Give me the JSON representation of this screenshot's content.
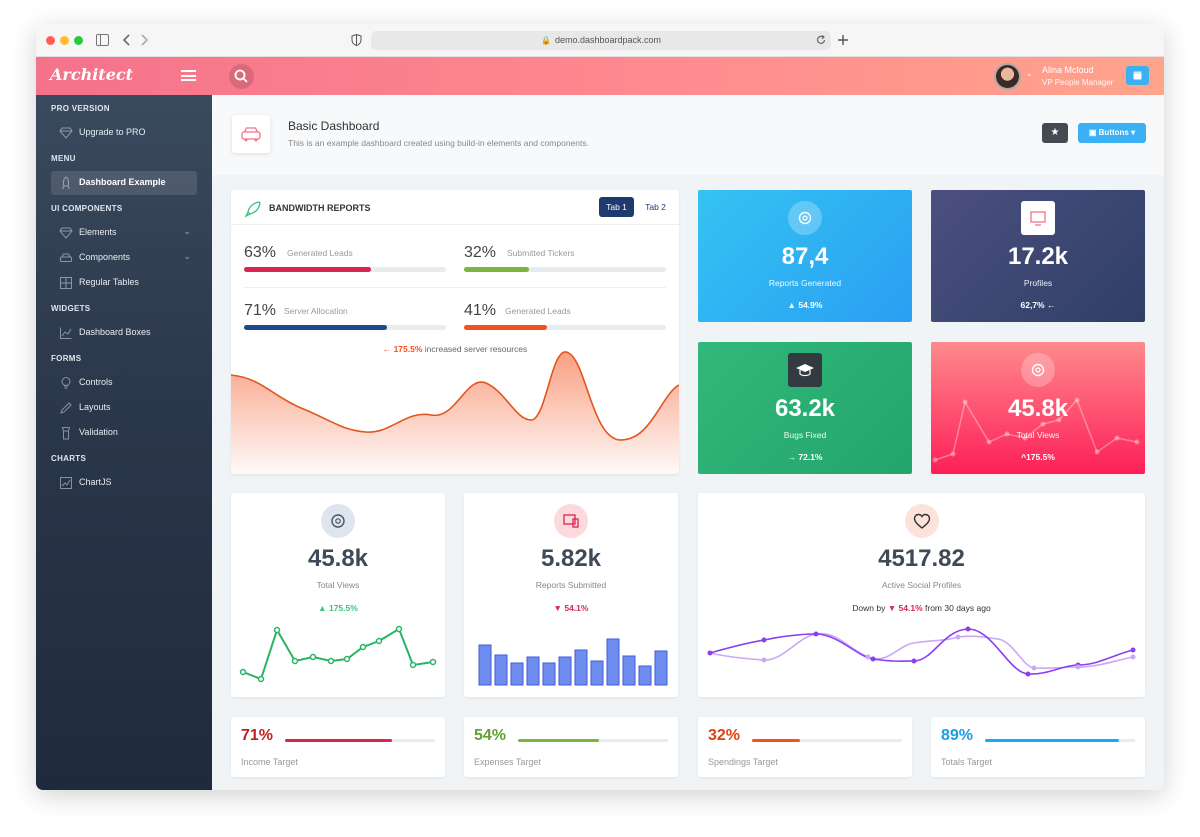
{
  "browser": {
    "url": "demo.dashboardpack.com"
  },
  "topbar": {
    "logo": "Architect",
    "user_name": "Alina Mcloud",
    "user_role": "VP People Manager"
  },
  "sidebar": {
    "sections": [
      "PRO VERSION",
      "MENU",
      "UI COMPONENTS",
      "WIDGETS",
      "FORMS",
      "CHARTS"
    ],
    "items": [
      {
        "label": "Upgrade to PRO",
        "icon": "diamond-icon"
      },
      {
        "label": "Dashboard Example",
        "icon": "rocket-icon",
        "active": true
      },
      {
        "label": "Elements",
        "icon": "diamond-icon",
        "chevron": true
      },
      {
        "label": "Components",
        "icon": "car-icon",
        "chevron": true
      },
      {
        "label": "Regular Tables",
        "icon": "grid-icon"
      },
      {
        "label": "Dashboard Boxes",
        "icon": "chart-icon"
      },
      {
        "label": "Controls",
        "icon": "lightbulb-icon"
      },
      {
        "label": "Layouts",
        "icon": "pencil-icon"
      },
      {
        "label": "Validation",
        "icon": "flashlight-icon"
      },
      {
        "label": "ChartJS",
        "icon": "graph-icon"
      }
    ]
  },
  "page": {
    "title": "Basic Dashboard",
    "subtitle": "This is an example dashboard created using build-in elements and components.",
    "buttons_label": "Buttons"
  },
  "bandwidth": {
    "title": "BANDWIDTH REPORTS",
    "tabs": [
      "Tab 1",
      "Tab 2"
    ],
    "metrics": [
      {
        "value": "63%",
        "label": "Generated Leads",
        "fill": 0.63,
        "color": "#d92550"
      },
      {
        "value": "32%",
        "label": "Submitted Tickers",
        "fill": 0.32,
        "color": "#7cb342"
      },
      {
        "value": "71%",
        "label": "Server Allocation",
        "fill": 0.71,
        "color": "#1b4b8a"
      },
      {
        "value": "41%",
        "label": "Generated Leads",
        "fill": 0.41,
        "color": "#f4511e"
      }
    ],
    "note_value": "175.5%",
    "note_text": "increased server resources"
  },
  "kpis": [
    {
      "value": "87,4",
      "label": "Reports Generated",
      "change": "54.9%",
      "arrow": "▲",
      "icon": "gear-icon"
    },
    {
      "value": "17.2k",
      "label": "Profiles",
      "change": "62,7%",
      "arrow": "←",
      "icon": "monitor-icon"
    },
    {
      "value": "63.2k",
      "label": "Bugs Fixed",
      "change": "72.1%",
      "arrow": "→",
      "icon": "graduation-cap-icon"
    },
    {
      "value": "45.8k",
      "label": "Total Views",
      "change": "175.5%",
      "arrow": "^",
      "icon": "gear-icon"
    }
  ],
  "widgets": [
    {
      "value": "45.8k",
      "label": "Total Views",
      "change": "175.5%",
      "arrow": "▲",
      "color": "#3ac47d"
    },
    {
      "value": "5.82k",
      "label": "Reports Submitted",
      "change": "54.1%",
      "arrow": "▼",
      "color": "#d92550"
    },
    {
      "value": "4517.82",
      "label": "Active Social Profiles",
      "prefix": "Down by",
      "change": "54.1%",
      "suffix": "from 30 days ago",
      "arrow": "▼",
      "color": "#d92550"
    }
  ],
  "targets": [
    {
      "value": "71%",
      "label": "Income Target",
      "fill": 0.71,
      "color": "#d92550"
    },
    {
      "value": "54%",
      "label": "Expenses Target",
      "fill": 0.54,
      "color": "#7cb342"
    },
    {
      "value": "32%",
      "label": "Spendings Target",
      "fill": 0.32,
      "color": "#f4511e"
    },
    {
      "value": "89%",
      "label": "Totals Target",
      "fill": 0.89,
      "color": "#16aaff"
    }
  ],
  "colors": {
    "accent": "#f5728b",
    "primary_button": "#3bb1f4",
    "tab_active": "#1e3a6e"
  }
}
